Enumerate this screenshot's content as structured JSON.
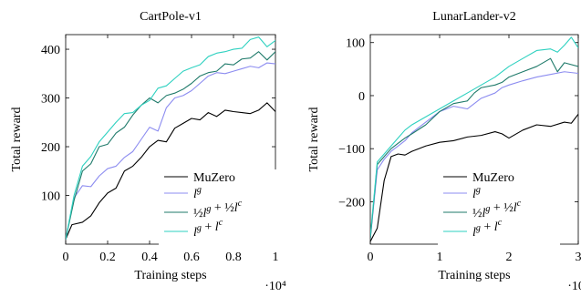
{
  "figure": {
    "colors": {
      "MuZero": "#000000",
      "lg": "#8c8cf0",
      "half": "#1f7a6a",
      "sum": "#2ed1c0"
    }
  },
  "chart_data": [
    {
      "type": "line",
      "title": "CartPole-v1",
      "xlabel": "Training steps",
      "ylabel": "Total reward",
      "x_multiplier": "·10⁴",
      "xlim": [
        0,
        1
      ],
      "ylim": [
        0,
        430
      ],
      "xticks": [
        0,
        0.2,
        0.4,
        0.6,
        0.8,
        1
      ],
      "xtick_labels": [
        "0",
        "0.2",
        "0.4",
        "0.6",
        "0.8",
        "1"
      ],
      "yticks": [
        100,
        200,
        300,
        400
      ],
      "ytick_labels": [
        "100",
        "200",
        "300",
        "400"
      ],
      "legend_position": "lower-right",
      "series": [
        {
          "name": "MuZero",
          "color_key": "MuZero",
          "x": [
            0,
            0.03,
            0.08,
            0.12,
            0.16,
            0.2,
            0.24,
            0.28,
            0.32,
            0.36,
            0.4,
            0.44,
            0.48,
            0.52,
            0.56,
            0.6,
            0.64,
            0.68,
            0.72,
            0.76,
            0.8,
            0.84,
            0.88,
            0.92,
            0.96,
            1.0
          ],
          "values": [
            10,
            40,
            45,
            58,
            85,
            105,
            115,
            150,
            160,
            178,
            200,
            213,
            210,
            238,
            248,
            258,
            255,
            270,
            262,
            275,
            272,
            270,
            268,
            275,
            290,
            272
          ]
        },
        {
          "name": "l^g",
          "color_key": "lg",
          "x": [
            0,
            0.04,
            0.08,
            0.12,
            0.16,
            0.2,
            0.24,
            0.28,
            0.32,
            0.36,
            0.4,
            0.44,
            0.48,
            0.52,
            0.56,
            0.6,
            0.64,
            0.68,
            0.72,
            0.76,
            0.8,
            0.84,
            0.88,
            0.92,
            0.96,
            1.0
          ],
          "values": [
            10,
            95,
            120,
            118,
            140,
            155,
            160,
            178,
            190,
            215,
            240,
            232,
            280,
            300,
            305,
            315,
            330,
            345,
            352,
            350,
            355,
            360,
            365,
            362,
            372,
            370
          ]
        },
        {
          "name": "½l^g + ½l^c",
          "color_key": "half",
          "x": [
            0,
            0.04,
            0.08,
            0.12,
            0.16,
            0.2,
            0.24,
            0.28,
            0.32,
            0.36,
            0.4,
            0.44,
            0.48,
            0.52,
            0.56,
            0.6,
            0.64,
            0.68,
            0.72,
            0.76,
            0.8,
            0.84,
            0.88,
            0.92,
            0.96,
            1.0
          ],
          "values": [
            10,
            90,
            150,
            165,
            200,
            205,
            228,
            240,
            265,
            285,
            300,
            290,
            305,
            310,
            318,
            330,
            345,
            352,
            355,
            370,
            368,
            380,
            382,
            395,
            378,
            395
          ]
        },
        {
          "name": "l^g + l^c",
          "color_key": "sum",
          "x": [
            0,
            0.04,
            0.08,
            0.12,
            0.16,
            0.2,
            0.24,
            0.28,
            0.32,
            0.36,
            0.4,
            0.44,
            0.48,
            0.52,
            0.56,
            0.6,
            0.64,
            0.68,
            0.72,
            0.76,
            0.8,
            0.84,
            0.88,
            0.92,
            0.96,
            1.0
          ],
          "values": [
            10,
            100,
            160,
            180,
            210,
            230,
            250,
            268,
            270,
            285,
            295,
            320,
            325,
            340,
            355,
            362,
            368,
            385,
            392,
            395,
            400,
            402,
            420,
            425,
            405,
            418
          ]
        }
      ]
    },
    {
      "type": "line",
      "title": "LunarLander-v2",
      "xlabel": "Training steps",
      "ylabel": "Total reward",
      "x_multiplier": "·10⁴",
      "xlim": [
        0,
        3
      ],
      "ylim": [
        -280,
        115
      ],
      "xticks": [
        0,
        1,
        2,
        3
      ],
      "xtick_labels": [
        "0",
        "1",
        "2",
        "3"
      ],
      "yticks": [
        -200,
        -100,
        0,
        100
      ],
      "ytick_labels": [
        "−200",
        "−100",
        "0",
        "100"
      ],
      "legend_position": "lower-right",
      "series": [
        {
          "name": "MuZero",
          "color_key": "MuZero",
          "x": [
            0,
            0.1,
            0.2,
            0.3,
            0.4,
            0.5,
            0.6,
            0.8,
            1.0,
            1.2,
            1.4,
            1.6,
            1.8,
            1.9,
            2.0,
            2.2,
            2.4,
            2.6,
            2.8,
            2.9,
            3.0
          ],
          "values": [
            -275,
            -250,
            -160,
            -115,
            -110,
            -112,
            -105,
            -95,
            -88,
            -85,
            -78,
            -75,
            -68,
            -72,
            -80,
            -65,
            -55,
            -58,
            -50,
            -52,
            -35
          ]
        },
        {
          "name": "l^g",
          "color_key": "lg",
          "x": [
            0,
            0.1,
            0.2,
            0.3,
            0.4,
            0.5,
            0.6,
            0.8,
            1.0,
            1.2,
            1.4,
            1.5,
            1.6,
            1.8,
            1.9,
            2.0,
            2.2,
            2.4,
            2.6,
            2.8,
            3.0
          ],
          "values": [
            -270,
            -140,
            -120,
            -105,
            -95,
            -85,
            -70,
            -50,
            -30,
            -20,
            -25,
            -15,
            -5,
            5,
            15,
            20,
            28,
            35,
            40,
            45,
            42
          ]
        },
        {
          "name": "½l^g + ½l^c",
          "color_key": "half",
          "x": [
            0,
            0.1,
            0.2,
            0.3,
            0.4,
            0.5,
            0.6,
            0.8,
            1.0,
            1.2,
            1.4,
            1.5,
            1.6,
            1.8,
            1.9,
            2.0,
            2.2,
            2.4,
            2.6,
            2.7,
            2.8,
            3.0
          ],
          "values": [
            -270,
            -130,
            -115,
            -100,
            -90,
            -80,
            -72,
            -55,
            -30,
            -15,
            -10,
            5,
            15,
            20,
            25,
            35,
            45,
            55,
            70,
            45,
            62,
            55
          ]
        },
        {
          "name": "l^g + l^c",
          "color_key": "sum",
          "x": [
            0,
            0.1,
            0.2,
            0.3,
            0.4,
            0.5,
            0.6,
            0.8,
            1.0,
            1.2,
            1.4,
            1.6,
            1.8,
            2.0,
            2.2,
            2.4,
            2.6,
            2.7,
            2.8,
            2.9,
            3.0
          ],
          "values": [
            -265,
            -125,
            -110,
            -95,
            -80,
            -65,
            -55,
            -40,
            -25,
            -10,
            5,
            20,
            35,
            55,
            70,
            85,
            88,
            82,
            95,
            110,
            90
          ]
        }
      ]
    }
  ]
}
